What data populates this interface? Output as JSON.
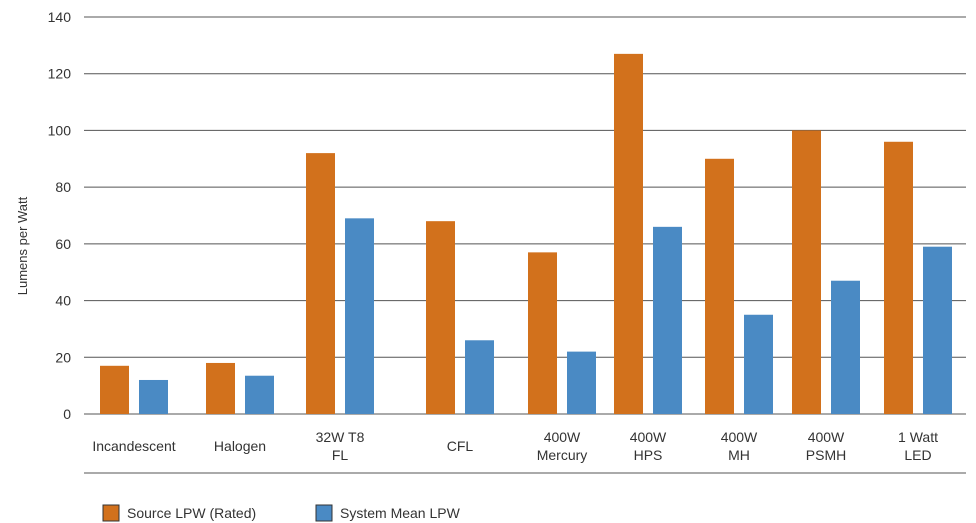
{
  "chart_data": {
    "type": "bar",
    "title": "",
    "xlabel": "",
    "ylabel": "Lumens per Watt",
    "ylim": [
      0,
      140
    ],
    "yticks": [
      0,
      20,
      40,
      60,
      80,
      100,
      120,
      140
    ],
    "grid": true,
    "legend_position": "bottom-left",
    "categories": [
      [
        "Incandescent"
      ],
      [
        "Halogen"
      ],
      [
        "32W T8",
        "FL"
      ],
      [
        "CFL"
      ],
      [
        "400W",
        "Mercury"
      ],
      [
        "400W",
        "HPS"
      ],
      [
        "400W",
        "MH"
      ],
      [
        "400W",
        "PSMH"
      ],
      [
        "1 Watt",
        "LED"
      ]
    ],
    "series": [
      {
        "name": "Source LPW (Rated)",
        "color": "#D2711C",
        "values": [
          17,
          18,
          92,
          68,
          57,
          127,
          90,
          100,
          96
        ]
      },
      {
        "name": "System Mean LPW",
        "color": "#4A8AC4",
        "values": [
          12,
          13.5,
          69,
          26,
          22,
          66,
          35,
          47,
          59
        ]
      }
    ]
  }
}
